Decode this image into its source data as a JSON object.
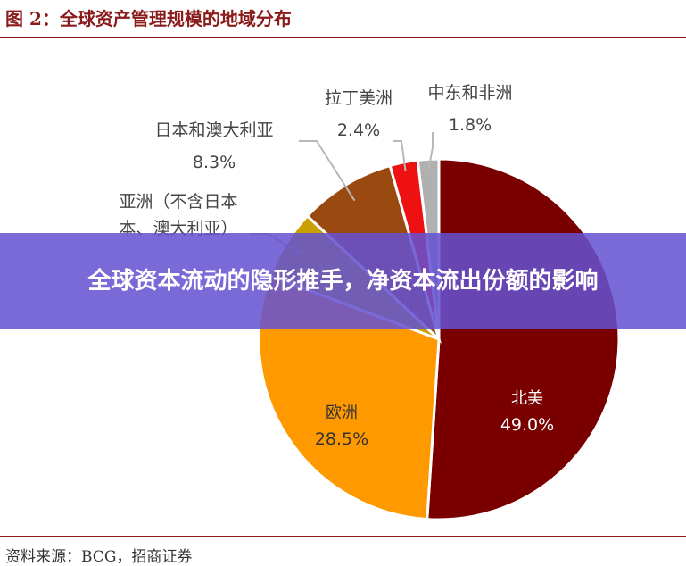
{
  "figure": {
    "title": "图 2：全球资产管理规模的地域分布",
    "source": "资料来源：BCG，招商证券"
  },
  "overlay": {
    "headline": "全球资本流动的隐形推手，净资本流出份额的影响"
  },
  "chart_data": {
    "type": "pie",
    "title": "",
    "slices": [
      {
        "label": "北美",
        "value": 49.0,
        "value_label": "49.0%",
        "color": "#7a0000"
      },
      {
        "label": "欧洲",
        "value": 28.5,
        "value_label": "28.5%",
        "color": "#ff9900"
      },
      {
        "label": "亚洲（不含日本、澳大利亚）",
        "value": 6.0,
        "value_label": "",
        "color": "#c8a000"
      },
      {
        "label": "日本和澳大利亚",
        "value": 8.3,
        "value_label": "8.3%",
        "color": "#9a4a10"
      },
      {
        "label": "拉丁美洲",
        "value": 2.4,
        "value_label": "2.4%",
        "color": "#ee1111"
      },
      {
        "label": "中东和非洲",
        "value": 1.8,
        "value_label": "1.8%",
        "color": "#b0b0b0"
      }
    ]
  }
}
